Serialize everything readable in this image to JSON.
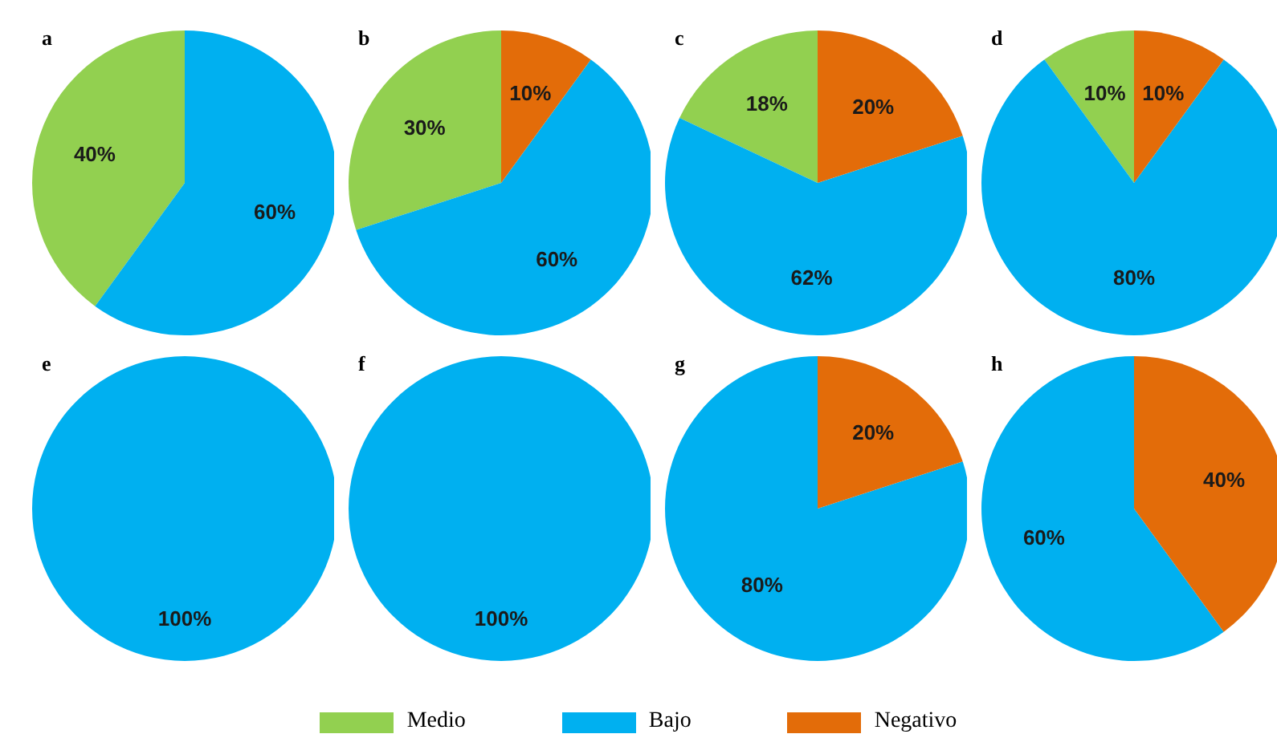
{
  "chart_data": [
    {
      "type": "pie",
      "title": "a",
      "categories": [
        null,
        null
      ],
      "values": [
        40,
        60
      ],
      "value_labels": [
        "40%",
        "60%"
      ],
      "colors": [
        "#92d050",
        "#00b0f0"
      ]
    },
    {
      "type": "pie",
      "title": "b",
      "categories": [
        "Medio",
        "Bajo",
        "Negativo"
      ],
      "values": [
        30,
        60,
        10
      ],
      "value_labels": [
        "30%",
        "60%",
        "10%"
      ],
      "colors": [
        "#92d050",
        "#00b0f0",
        "#e36c09"
      ],
      "legend": "bottom"
    },
    {
      "type": "pie",
      "title": "c",
      "categories": [
        null,
        null,
        null
      ],
      "values": [
        18,
        62,
        20
      ],
      "value_labels": [
        "18%",
        "62%",
        "20%"
      ],
      "colors": [
        "#92d050",
        "#00b0f0",
        "#e36c09"
      ]
    },
    {
      "type": "pie",
      "title": "d",
      "categories": [
        null,
        null,
        null
      ],
      "values": [
        10,
        80,
        10
      ],
      "value_labels": [
        "10%",
        "80%",
        "10%"
      ],
      "colors": [
        "#92d050",
        "#00b0f0",
        "#e36c09"
      ]
    },
    {
      "type": "pie",
      "title": "e",
      "categories": [
        null
      ],
      "values": [
        100
      ],
      "value_labels": [
        "100%"
      ],
      "colors": [
        "#00b0f0"
      ]
    },
    {
      "type": "pie",
      "title": "f",
      "categories": [
        null
      ],
      "values": [
        100
      ],
      "value_labels": [
        "100%"
      ],
      "colors": [
        "#00b0f0"
      ]
    },
    {
      "type": "pie",
      "title": "g",
      "categories": [
        null,
        null
      ],
      "values": [
        80,
        20
      ],
      "value_labels": [
        "80%",
        "20%"
      ],
      "colors": [
        "#00b0f0",
        "#e36c09"
      ]
    },
    {
      "type": "pie",
      "title": "h",
      "categories": [
        null,
        null
      ],
      "values": [
        60,
        40
      ],
      "value_labels": [
        "60%",
        "40%"
      ],
      "colors": [
        "#00b0f0",
        "#e36c09"
      ]
    }
  ]
}
